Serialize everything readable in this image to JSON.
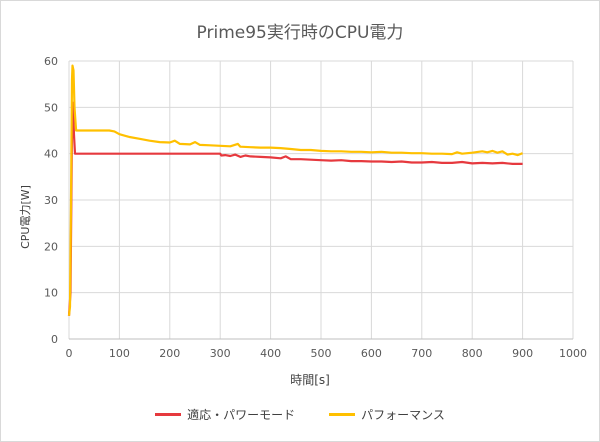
{
  "chart_data": {
    "type": "line",
    "title": "Prime95実行時のCPU電力",
    "xlabel": "時間[s]",
    "ylabel": "CPU電力[W]",
    "xlim": [
      0,
      1000
    ],
    "ylim": [
      0,
      60
    ],
    "x_ticks": [
      0,
      100,
      200,
      300,
      400,
      500,
      600,
      700,
      800,
      900,
      1000
    ],
    "y_ticks": [
      0,
      10,
      20,
      30,
      40,
      50,
      60
    ],
    "grid": true,
    "legend_position": "bottom",
    "series": [
      {
        "name": "適応・パワーモード",
        "color": "#e6393e",
        "points": [
          [
            0,
            5
          ],
          [
            3,
            10
          ],
          [
            6,
            45
          ],
          [
            8,
            51
          ],
          [
            10,
            44
          ],
          [
            12,
            40
          ],
          [
            50,
            40
          ],
          [
            100,
            40
          ],
          [
            150,
            40
          ],
          [
            200,
            40
          ],
          [
            250,
            40
          ],
          [
            300,
            40
          ],
          [
            302,
            39.6
          ],
          [
            310,
            39.7
          ],
          [
            320,
            39.5
          ],
          [
            330,
            39.8
          ],
          [
            340,
            39.3
          ],
          [
            350,
            39.6
          ],
          [
            360,
            39.4
          ],
          [
            380,
            39.3
          ],
          [
            400,
            39.2
          ],
          [
            420,
            39.0
          ],
          [
            430,
            39.4
          ],
          [
            440,
            38.8
          ],
          [
            460,
            38.8
          ],
          [
            480,
            38.7
          ],
          [
            500,
            38.6
          ],
          [
            520,
            38.5
          ],
          [
            540,
            38.6
          ],
          [
            560,
            38.4
          ],
          [
            580,
            38.4
          ],
          [
            600,
            38.3
          ],
          [
            620,
            38.3
          ],
          [
            640,
            38.2
          ],
          [
            660,
            38.3
          ],
          [
            680,
            38.1
          ],
          [
            700,
            38.1
          ],
          [
            720,
            38.2
          ],
          [
            740,
            38.0
          ],
          [
            760,
            38.0
          ],
          [
            780,
            38.2
          ],
          [
            800,
            37.9
          ],
          [
            820,
            38.0
          ],
          [
            840,
            37.9
          ],
          [
            860,
            38.0
          ],
          [
            880,
            37.8
          ],
          [
            900,
            37.8
          ]
        ]
      },
      {
        "name": "パフォーマンス",
        "color": "#ffc000",
        "points": [
          [
            0,
            5
          ],
          [
            2,
            7
          ],
          [
            4,
            30
          ],
          [
            6,
            56
          ],
          [
            7,
            59
          ],
          [
            9,
            58
          ],
          [
            11,
            50
          ],
          [
            14,
            45
          ],
          [
            50,
            45
          ],
          [
            80,
            45
          ],
          [
            90,
            44.8
          ],
          [
            100,
            44.2
          ],
          [
            120,
            43.6
          ],
          [
            140,
            43.2
          ],
          [
            160,
            42.8
          ],
          [
            180,
            42.5
          ],
          [
            200,
            42.4
          ],
          [
            210,
            42.8
          ],
          [
            220,
            42.1
          ],
          [
            240,
            42.0
          ],
          [
            250,
            42.5
          ],
          [
            260,
            41.9
          ],
          [
            280,
            41.8
          ],
          [
            300,
            41.7
          ],
          [
            320,
            41.6
          ],
          [
            335,
            42.1
          ],
          [
            340,
            41.5
          ],
          [
            360,
            41.4
          ],
          [
            380,
            41.3
          ],
          [
            400,
            41.3
          ],
          [
            420,
            41.2
          ],
          [
            440,
            41.0
          ],
          [
            460,
            40.8
          ],
          [
            480,
            40.8
          ],
          [
            500,
            40.6
          ],
          [
            520,
            40.5
          ],
          [
            540,
            40.5
          ],
          [
            560,
            40.4
          ],
          [
            580,
            40.4
          ],
          [
            600,
            40.3
          ],
          [
            620,
            40.4
          ],
          [
            640,
            40.2
          ],
          [
            660,
            40.2
          ],
          [
            680,
            40.1
          ],
          [
            700,
            40.1
          ],
          [
            720,
            40.0
          ],
          [
            740,
            40.0
          ],
          [
            760,
            39.9
          ],
          [
            770,
            40.3
          ],
          [
            780,
            40.0
          ],
          [
            800,
            40.2
          ],
          [
            820,
            40.5
          ],
          [
            830,
            40.3
          ],
          [
            840,
            40.6
          ],
          [
            850,
            40.2
          ],
          [
            860,
            40.5
          ],
          [
            870,
            39.8
          ],
          [
            880,
            40.0
          ],
          [
            890,
            39.7
          ],
          [
            900,
            40.1
          ]
        ]
      }
    ]
  }
}
